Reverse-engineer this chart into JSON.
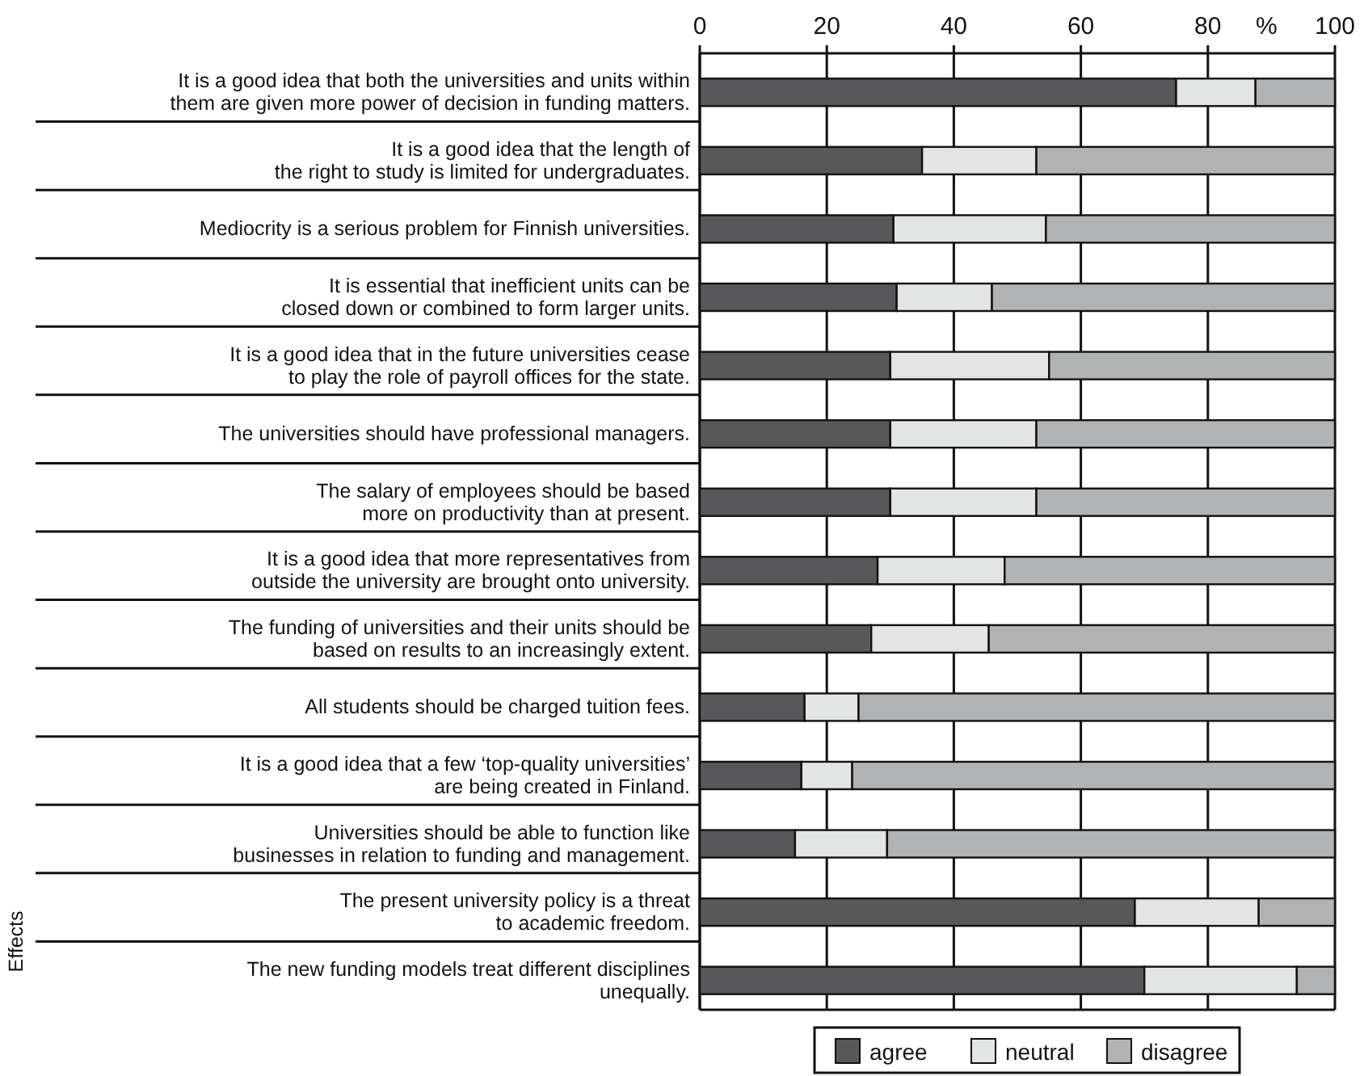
{
  "chart_data": {
    "type": "bar",
    "orientation": "horizontal",
    "stacked": true,
    "xlabel": "%",
    "categories": [
      "It is a good idea that both the universities and units within\nthem are given more power of decision in funding matters.",
      "It is a good idea that the length of\nthe right to study is limited for undergraduates.",
      "Mediocrity is a serious problem for Finnish universities.",
      "It is essential that inefficient units can be\nclosed down or combined to form larger units.",
      "It is a good idea that in the future universities cease\nto play the role of payroll offices for the state.",
      "The universities should have professional managers.",
      "The salary of employees should be based\nmore on productivity than at present.",
      "It is a good idea that more representatives from\noutside the university are brought onto university.",
      "The funding of universities and their units should be\nbased on results to an increasingly extent.",
      "All students should be charged tuition fees.",
      "It is a good idea that a few ‘top-quality universities’\nare being created in Finland.",
      "Universities should be able to function like\nbusinesses in relation to funding and management.",
      "The present university policy is a threat\nto academic freedom.",
      "The new funding models treat different disciplines\nunequally."
    ],
    "series": [
      {
        "name": "agree",
        "color": "#58585a",
        "values": [
          75,
          35,
          30.5,
          31,
          30,
          30,
          30,
          28,
          27,
          16.5,
          16,
          15,
          68.5,
          70
        ]
      },
      {
        "name": "neutral",
        "color": "#e3e4e4",
        "values": [
          12.5,
          18,
          24,
          15,
          25,
          23,
          23,
          20,
          18.5,
          8.5,
          8,
          14.5,
          19.5,
          24
        ]
      },
      {
        "name": "disagree",
        "color": "#b1b2b4",
        "values": [
          12.5,
          47,
          45.5,
          54,
          45,
          47,
          47,
          52,
          54.5,
          75,
          76,
          70.5,
          12,
          6
        ]
      }
    ],
    "xlim": [
      0,
      100
    ],
    "xticks": [
      0,
      20,
      40,
      60,
      80,
      100
    ],
    "grid": "x",
    "legend": "bottom",
    "annotations": [
      "Effects"
    ]
  }
}
